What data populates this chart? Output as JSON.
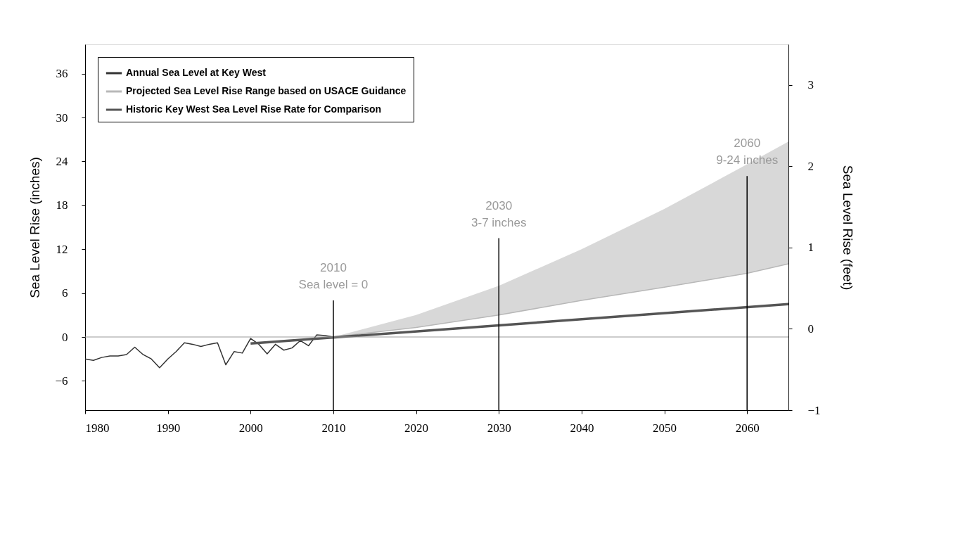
{
  "chart_data": {
    "type": "line",
    "ylabel": "Sea Level Rise (inches)",
    "y2label": "Sea Level Rise (feet)",
    "xlim": [
      1980,
      2065
    ],
    "xticks": [
      1980,
      1990,
      2000,
      2010,
      2020,
      2030,
      2040,
      2050,
      2060
    ],
    "ylim": [
      -10,
      40
    ],
    "yticks": [
      -6,
      0,
      6,
      12,
      18,
      24,
      30,
      36
    ],
    "y2lim": [
      -1,
      3.5
    ],
    "y2ticks": [
      -1,
      0,
      1,
      2,
      3
    ],
    "grid": false,
    "legend": "top left",
    "series": [
      {
        "name": "Annual Sea Level at Key West",
        "color": "#333333",
        "x": [
          1980,
          1981,
          1982,
          1983,
          1984,
          1985,
          1986,
          1987,
          1988,
          1989,
          1990,
          1991,
          1992,
          1993,
          1994,
          1995,
          1996,
          1997,
          1998,
          1999,
          2000,
          2001,
          2002,
          2003,
          2004,
          2005,
          2006,
          2007,
          2008,
          2009,
          2010
        ],
        "values": [
          -3.0,
          -3.2,
          -2.8,
          -2.6,
          -2.6,
          -2.4,
          -1.4,
          -2.4,
          -3.0,
          -4.2,
          -3.0,
          -2.0,
          -0.8,
          -1.0,
          -1.3,
          -1.0,
          -0.8,
          -3.8,
          -2.0,
          -2.2,
          -0.2,
          -1.0,
          -2.3,
          -1.0,
          -1.8,
          -1.5,
          -0.5,
          -1.2,
          0.3,
          0.2,
          0
        ]
      },
      {
        "name": "Projected Sea Level Rise Range based on USACE Guidance",
        "color": "#b8b8b8",
        "x": [
          2010,
          2020,
          2030,
          2040,
          2050,
          2060,
          2065
        ],
        "values": [
          0,
          1.3,
          3,
          5,
          6.8,
          8.7,
          10
        ],
        "lower": [
          0,
          1.3,
          3,
          5,
          6.8,
          8.7,
          10
        ],
        "upper": [
          0,
          3,
          7,
          12,
          17.5,
          23.6,
          26.7
        ]
      },
      {
        "name": "Historic Key West Sea Level Rise Rate for Comparison",
        "color": "#555555",
        "x": [
          2000,
          2065
        ],
        "values": [
          -0.9,
          4.5
        ]
      }
    ],
    "ref_lines": [
      {
        "axis": "y",
        "value": 0,
        "color": "#999999"
      },
      {
        "axis": "x",
        "value": 2010,
        "label": "2010\nSea level = 0",
        "color": "#000000"
      },
      {
        "axis": "x",
        "value": 2030,
        "label": "2030\n3-7 inches",
        "color": "#000000"
      },
      {
        "axis": "x",
        "value": 2060,
        "label": "2060\n9-24 inches",
        "color": "#000000"
      }
    ]
  }
}
